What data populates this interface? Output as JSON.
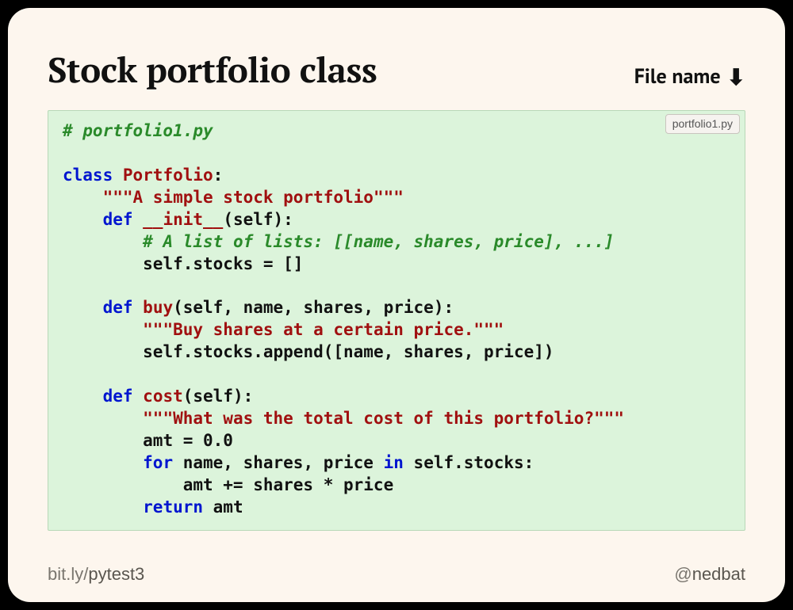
{
  "title": "Stock portfolio class",
  "file_label": "File name",
  "file_tab": "portfolio1.py",
  "footer": {
    "left_prefix": "bit.ly/",
    "left_bold": "pytest3",
    "right_prefix": "@",
    "right_bold": "nedbat"
  },
  "colors": {
    "page_bg": "#000000",
    "slide_bg": "#fdf6ee",
    "code_bg": "#dcf4db",
    "code_border": "#b8d8b8",
    "comment": "#2a8a2a",
    "keyword": "#0015cf",
    "classname": "#a01010",
    "string": "#a01010",
    "text": "#111111",
    "footer": "#7a766f"
  },
  "code": {
    "header_comment": "# portfolio1.py",
    "class_kw": "class",
    "class_name": "Portfolio",
    "class_doc": "\"\"\"A simple stock portfolio\"\"\"",
    "def_kw": "def",
    "init_name": "__init__",
    "init_params": "(self):",
    "init_comment": "# A list of lists: [[name, shares, price], ...]",
    "init_body": "self.stocks = []",
    "buy_name": "buy",
    "buy_params": "(self, name, shares, price):",
    "buy_doc": "\"\"\"Buy shares at a certain price.\"\"\"",
    "buy_body": "self.stocks.append([name, shares, price])",
    "cost_name": "cost",
    "cost_params": "(self):",
    "cost_doc": "\"\"\"What was the total cost of this portfolio?\"\"\"",
    "cost_l1": "amt = 0.0",
    "for_kw": "for",
    "cost_l2_mid": " name, shares, price ",
    "in_kw": "in",
    "cost_l2_tail": " self.stocks:",
    "cost_l3": "amt += shares * price",
    "return_kw": "return",
    "cost_l4_tail": " amt"
  }
}
